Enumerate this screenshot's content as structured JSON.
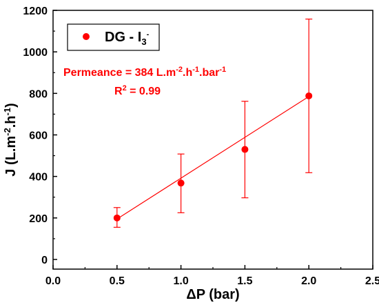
{
  "chart_data": {
    "type": "scatter",
    "xlabel": "ΔP (bar)",
    "ylabel": {
      "parts": [
        "J (L.m",
        "-2",
        ".h",
        "-1",
        ")"
      ]
    },
    "xlim": [
      0.0,
      2.5
    ],
    "ylim": [
      0,
      1200
    ],
    "x_ticks": [
      0.0,
      0.5,
      1.0,
      1.5,
      2.0,
      2.5
    ],
    "x_tick_labels": [
      "0.0",
      "0.5",
      "1.0",
      "1.5",
      "2.0",
      "2.5"
    ],
    "y_ticks": [
      0,
      200,
      400,
      600,
      800,
      1000,
      1200
    ],
    "y_tick_labels": [
      "0",
      "200",
      "400",
      "600",
      "800",
      "1000",
      "1200"
    ],
    "series": [
      {
        "name": "DG - I3-",
        "color": "#ff0000",
        "x": [
          0.5,
          1.0,
          1.5,
          2.0
        ],
        "y": [
          200,
          368,
          530,
          788
        ],
        "y_err_low": [
          155,
          225,
          297,
          418
        ],
        "y_err_high": [
          250,
          508,
          762,
          1158
        ]
      }
    ],
    "fit_line": {
      "color": "#ff0000",
      "x": [
        0.5,
        2.0
      ],
      "y": [
        195,
        785
      ]
    },
    "legend": {
      "position": "top-left",
      "label_parts": [
        "DG - I",
        "3",
        "-"
      ]
    },
    "annotations": [
      {
        "id": "permeance",
        "color": "#ff0000",
        "parts": [
          {
            "t": "Permeance = 384 L.m",
            "s": "normal"
          },
          {
            "t": "-2",
            "s": "super"
          },
          {
            "t": ".h",
            "s": "normal"
          },
          {
            "t": "-1",
            "s": "super"
          },
          {
            "t": ".bar",
            "s": "normal"
          },
          {
            "t": "-1",
            "s": "super"
          }
        ]
      },
      {
        "id": "r-squared",
        "color": "#ff0000",
        "parts": [
          {
            "t": "R",
            "s": "normal"
          },
          {
            "t": "2",
            "s": "super"
          },
          {
            "t": " = 0.99",
            "s": "normal"
          }
        ]
      }
    ],
    "grid": false
  }
}
